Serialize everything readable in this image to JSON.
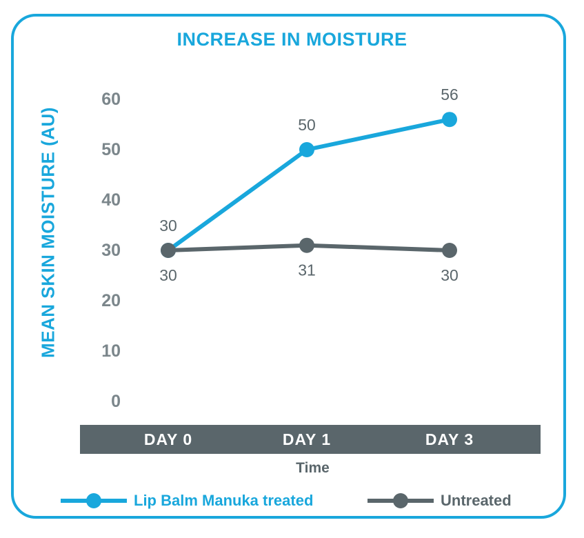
{
  "chart_data": {
    "type": "line",
    "title": "INCREASE IN MOISTURE",
    "ylabel": "MEAN SKIN MOISTURE (AU)",
    "xlabel": "Time",
    "categories": [
      "DAY 0",
      "DAY 1",
      "DAY 3"
    ],
    "yticks": [
      0,
      10,
      20,
      30,
      40,
      50,
      60
    ],
    "ylim": [
      0,
      60
    ],
    "series": [
      {
        "name": "Lip Balm Manuka treated",
        "values": [
          30,
          50,
          56
        ],
        "labels": [
          "30",
          "50",
          "56"
        ],
        "color": "#19a7dc"
      },
      {
        "name": "Untreated",
        "values": [
          30,
          31,
          30
        ],
        "labels": [
          "30",
          "31",
          "30"
        ],
        "color": "#5a666b"
      }
    ],
    "legend_position": "bottom",
    "grid": false
  }
}
